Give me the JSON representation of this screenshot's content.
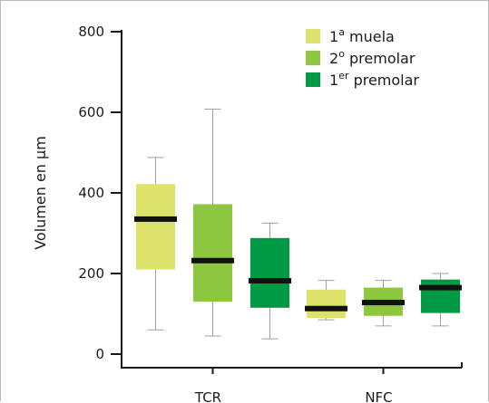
{
  "chart_data": {
    "type": "box",
    "ylabel": "Volumen en μm",
    "ylim": [
      0,
      800
    ],
    "yticks": [
      0,
      200,
      400,
      600,
      800
    ],
    "categories": [
      "TCR",
      "NFC"
    ],
    "series": [
      {
        "name": "1ª muela",
        "legend_base": "1",
        "legend_sup": "a",
        "legend_tail": " muela",
        "color": "#dde26a",
        "boxes": [
          {
            "min": 60,
            "q1": 210,
            "median": 335,
            "q3": 422,
            "max": 488
          },
          {
            "min": 85,
            "q1": 90,
            "median": 113,
            "q3": 160,
            "max": 183
          }
        ]
      },
      {
        "name": "2º premolar",
        "legend_base": "2",
        "legend_sup": "o",
        "legend_tail": " premolar",
        "color": "#8dc63f",
        "boxes": [
          {
            "min": 45,
            "q1": 130,
            "median": 232,
            "q3": 372,
            "max": 608
          },
          {
            "min": 70,
            "q1": 95,
            "median": 128,
            "q3": 165,
            "max": 183
          }
        ]
      },
      {
        "name": "1er premolar",
        "legend_base": "1",
        "legend_sup": "er",
        "legend_tail": " premolar",
        "color": "#009a44",
        "boxes": [
          {
            "min": 38,
            "q1": 115,
            "median": 182,
            "q3": 288,
            "max": 325
          },
          {
            "min": 70,
            "q1": 102,
            "median": 165,
            "q3": 185,
            "max": 200
          }
        ]
      }
    ],
    "grid": false,
    "legend": "top-right"
  }
}
